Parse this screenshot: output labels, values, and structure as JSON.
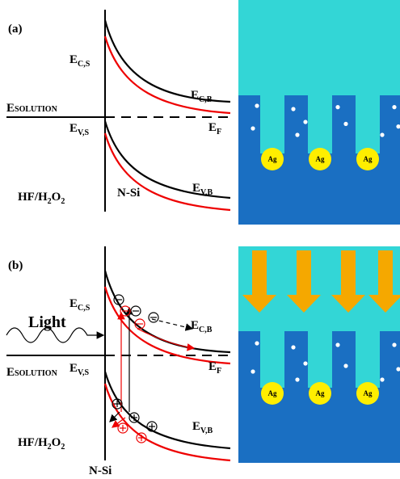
{
  "panels": [
    {
      "label": "(a)",
      "ec_s": {
        "main": "E",
        "sub": "C,S"
      },
      "ec_b": {
        "main": "E",
        "sub": "C,B"
      },
      "esolution": {
        "main": "E",
        "rest": "SOLUTION"
      },
      "ev_s": {
        "main": "E",
        "sub": "V,S"
      },
      "ef": {
        "main": "E",
        "sub": "F"
      },
      "ev_b": {
        "main": "E",
        "sub": "V,B"
      },
      "hf": [
        "HF/H",
        "2",
        "O",
        "2"
      ],
      "nsi": "N-Si",
      "ag": [
        "Ag",
        "Ag",
        "Ag"
      ]
    },
    {
      "label": "(b)",
      "light": "Light",
      "ec_s": {
        "main": "E",
        "sub": "C,S"
      },
      "ec_b": {
        "main": "E",
        "sub": "C,B"
      },
      "esolution": {
        "main": "E",
        "rest": "SOLUTION"
      },
      "ev_s": {
        "main": "E",
        "sub": "V,S"
      },
      "ef": {
        "main": "E",
        "sub": "F"
      },
      "ev_b": {
        "main": "E",
        "sub": "V,B"
      },
      "hf": [
        "HF/H",
        "2",
        "O",
        "2"
      ],
      "nsi": "N-Si",
      "ag": [
        "Ag",
        "Ag",
        "Ag"
      ]
    }
  ]
}
